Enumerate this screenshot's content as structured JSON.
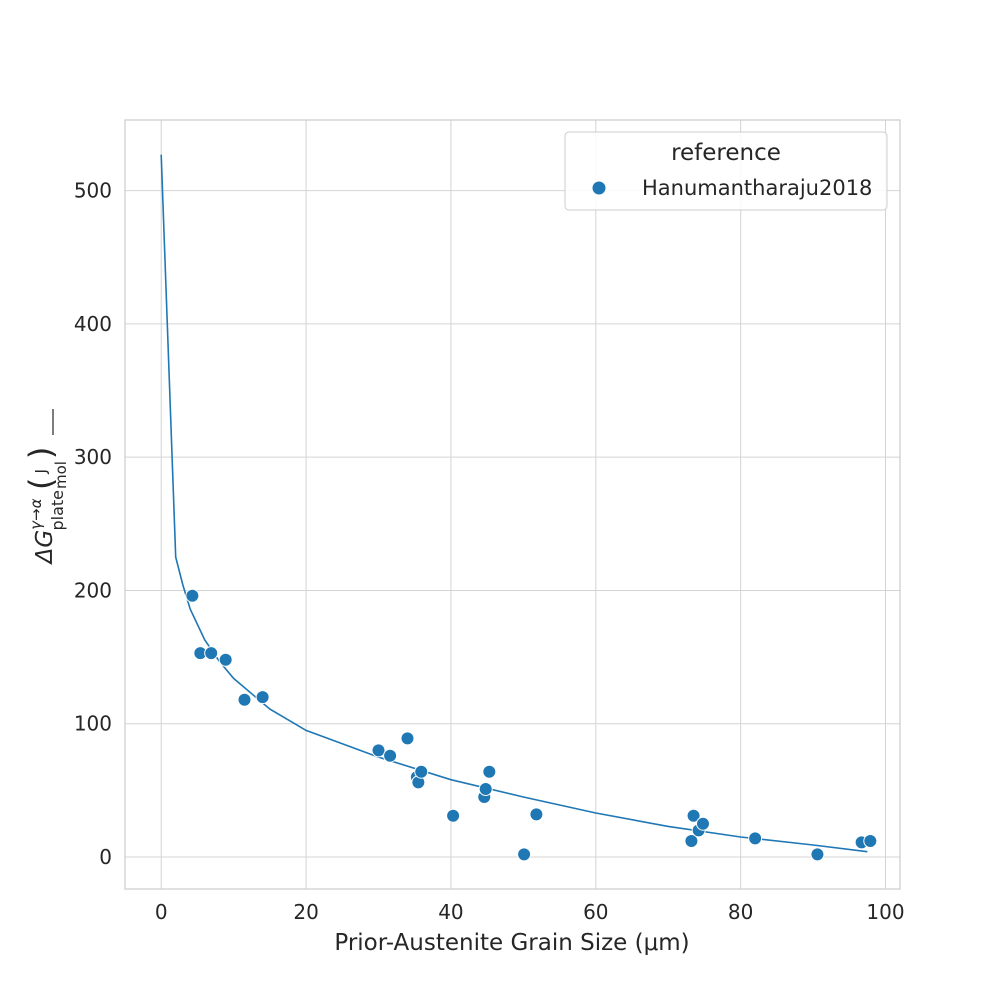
{
  "chart_data": {
    "type": "scatter",
    "xlabel": "Prior-Austenite Grain Size (μm)",
    "ylabel": "ΔG",
    "ylabel_superscript": "γ→α",
    "ylabel_subscript": "plate",
    "ylabel_unit_num": "J",
    "ylabel_unit_den": "mol",
    "xlim": [
      -5,
      102
    ],
    "ylim": [
      -24,
      553
    ],
    "x_ticks": [
      0,
      20,
      40,
      60,
      80,
      100
    ],
    "y_ticks": [
      0,
      100,
      200,
      300,
      400,
      500
    ],
    "grid": true,
    "legend": {
      "title": "reference",
      "placement": "top-right",
      "entries": [
        "Hanumantharaju2018"
      ]
    },
    "series": [
      {
        "name": "Hanumantharaju2018",
        "kind": "scatter",
        "color": "#1f77b4",
        "points": [
          [
            4.3,
            196
          ],
          [
            5.4,
            153
          ],
          [
            6.9,
            153
          ],
          [
            8.9,
            148
          ],
          [
            11.5,
            118
          ],
          [
            14.0,
            120
          ],
          [
            30.0,
            80
          ],
          [
            31.6,
            76
          ],
          [
            34.0,
            89
          ],
          [
            35.3,
            60
          ],
          [
            35.5,
            56
          ],
          [
            35.9,
            64
          ],
          [
            40.3,
            31
          ],
          [
            44.6,
            45
          ],
          [
            44.8,
            51
          ],
          [
            45.3,
            64
          ],
          [
            50.1,
            2
          ],
          [
            51.8,
            32
          ],
          [
            73.2,
            12
          ],
          [
            73.5,
            31
          ],
          [
            74.2,
            20
          ],
          [
            74.8,
            25
          ],
          [
            82.0,
            14
          ],
          [
            90.6,
            2
          ],
          [
            96.7,
            11
          ],
          [
            97.9,
            12
          ]
        ]
      },
      {
        "name": "fit",
        "kind": "line",
        "color": "#1f77b4",
        "points": [
          [
            0.0,
            527
          ],
          [
            2.0,
            225
          ],
          [
            3.0,
            204
          ],
          [
            4.0,
            186
          ],
          [
            6.0,
            163
          ],
          [
            8.0,
            147
          ],
          [
            10.0,
            134
          ],
          [
            15.0,
            111
          ],
          [
            20.0,
            95
          ],
          [
            30.0,
            75
          ],
          [
            40.0,
            58
          ],
          [
            50.0,
            45
          ],
          [
            60.0,
            33
          ],
          [
            70.0,
            23
          ],
          [
            80.0,
            15
          ],
          [
            90.0,
            9
          ],
          [
            97.5,
            4
          ]
        ]
      }
    ]
  }
}
